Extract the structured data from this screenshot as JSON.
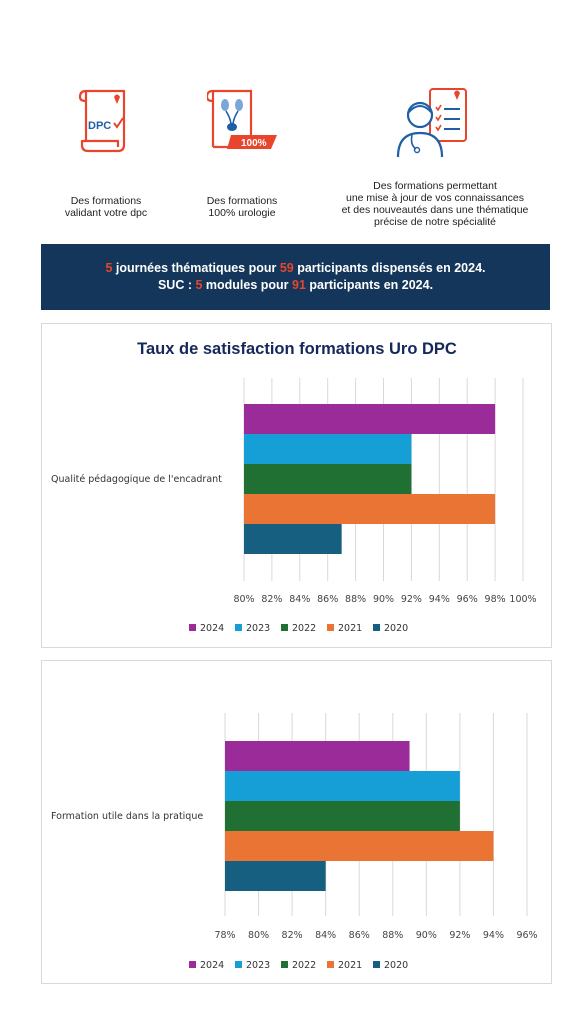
{
  "colors": {
    "accent_red": "#e8452c",
    "banner_bg": "#13365a",
    "title_navy": "#16285a",
    "series": [
      "#9b2b99",
      "#169fd7",
      "#1f7032",
      "#ea7433",
      "#175f81"
    ]
  },
  "features": [
    {
      "icon": "dpc-document-icon",
      "icon_text": "DPC",
      "caption": "Des formations\nvalidant votre dpc"
    },
    {
      "icon": "urology-document-icon",
      "icon_text": "100%",
      "caption": "Des formations\n100% urologie"
    },
    {
      "icon": "doctor-checklist-icon",
      "caption": "Des formations permettant\nune mise à jour de vos connaissances\net des nouveautés dans une thématique\nprécise de notre spécialité"
    }
  ],
  "banner": {
    "line1": [
      {
        "text": "5",
        "hl": true
      },
      {
        "text": " journées thématiques pour ",
        "hl": false
      },
      {
        "text": "59",
        "hl": true
      },
      {
        "text": " participants dispensés en 2024.",
        "hl": false
      }
    ],
    "line2": [
      {
        "text": "SUC : ",
        "hl": false
      },
      {
        "text": "5",
        "hl": true
      },
      {
        "text": " modules pour ",
        "hl": false
      },
      {
        "text": "91",
        "hl": true
      },
      {
        "text": " participants en 2024.",
        "hl": false
      }
    ]
  },
  "chart_data": [
    {
      "type": "bar",
      "orientation": "horizontal",
      "title": "Taux de satisfaction formations  Uro DPC",
      "categories": [
        "Qualité pédagogique de l'encadrant"
      ],
      "series": [
        {
          "name": "2024",
          "values": [
            98
          ]
        },
        {
          "name": "2023",
          "values": [
            92
          ]
        },
        {
          "name": "2022",
          "values": [
            92
          ]
        },
        {
          "name": "2021",
          "values": [
            98
          ]
        },
        {
          "name": "2020",
          "values": [
            87
          ]
        }
      ],
      "xlim": [
        80,
        100
      ],
      "xticks": [
        "80%",
        "82%",
        "84%",
        "86%",
        "88%",
        "90%",
        "92%",
        "94%",
        "96%",
        "98%",
        "100%"
      ],
      "grid": "vertical",
      "legend": "bottom"
    },
    {
      "type": "bar",
      "orientation": "horizontal",
      "title": "",
      "categories": [
        "Formation utile dans la pratique"
      ],
      "series": [
        {
          "name": "2024",
          "values": [
            89
          ]
        },
        {
          "name": "2023",
          "values": [
            92
          ]
        },
        {
          "name": "2022",
          "values": [
            92
          ]
        },
        {
          "name": "2021",
          "values": [
            94
          ]
        },
        {
          "name": "2020",
          "values": [
            84
          ]
        }
      ],
      "xlim": [
        78,
        96
      ],
      "xticks": [
        "78%",
        "80%",
        "82%",
        "84%",
        "86%",
        "88%",
        "90%",
        "92%",
        "94%",
        "96%"
      ],
      "grid": "vertical",
      "legend": "bottom"
    }
  ]
}
